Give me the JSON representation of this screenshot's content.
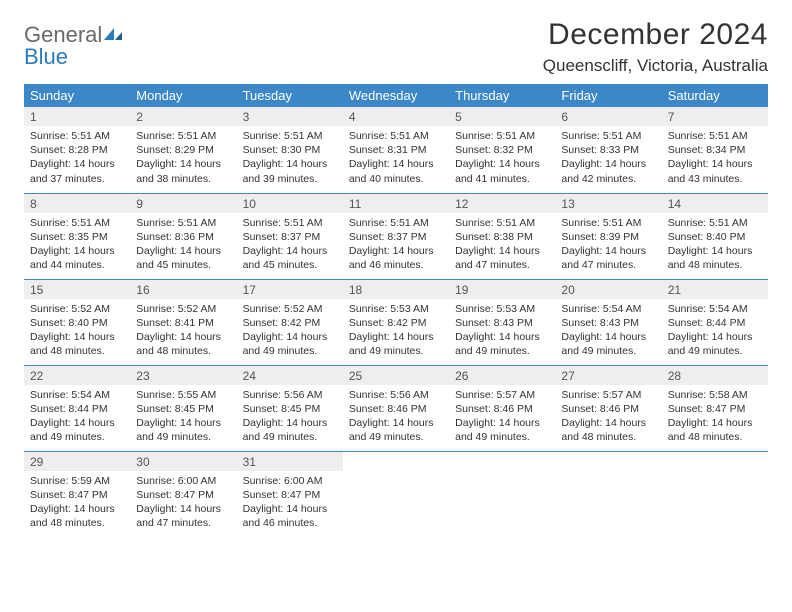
{
  "brand": {
    "word1": "General",
    "word2": "Blue"
  },
  "title": "December 2024",
  "location": "Queenscliff, Victoria, Australia",
  "colors": {
    "header_bg": "#3b87c8",
    "header_text": "#ffffff",
    "daynum_bg": "#eeeeee",
    "border": "#3b87c8",
    "logo_gray": "#6a6a6a",
    "logo_blue": "#2b7bbf"
  },
  "day_headers": [
    "Sunday",
    "Monday",
    "Tuesday",
    "Wednesday",
    "Thursday",
    "Friday",
    "Saturday"
  ],
  "weeks": [
    [
      {
        "n": "1",
        "sr": "Sunrise: 5:51 AM",
        "ss": "Sunset: 8:28 PM",
        "dl": "Daylight: 14 hours and 37 minutes."
      },
      {
        "n": "2",
        "sr": "Sunrise: 5:51 AM",
        "ss": "Sunset: 8:29 PM",
        "dl": "Daylight: 14 hours and 38 minutes."
      },
      {
        "n": "3",
        "sr": "Sunrise: 5:51 AM",
        "ss": "Sunset: 8:30 PM",
        "dl": "Daylight: 14 hours and 39 minutes."
      },
      {
        "n": "4",
        "sr": "Sunrise: 5:51 AM",
        "ss": "Sunset: 8:31 PM",
        "dl": "Daylight: 14 hours and 40 minutes."
      },
      {
        "n": "5",
        "sr": "Sunrise: 5:51 AM",
        "ss": "Sunset: 8:32 PM",
        "dl": "Daylight: 14 hours and 41 minutes."
      },
      {
        "n": "6",
        "sr": "Sunrise: 5:51 AM",
        "ss": "Sunset: 8:33 PM",
        "dl": "Daylight: 14 hours and 42 minutes."
      },
      {
        "n": "7",
        "sr": "Sunrise: 5:51 AM",
        "ss": "Sunset: 8:34 PM",
        "dl": "Daylight: 14 hours and 43 minutes."
      }
    ],
    [
      {
        "n": "8",
        "sr": "Sunrise: 5:51 AM",
        "ss": "Sunset: 8:35 PM",
        "dl": "Daylight: 14 hours and 44 minutes."
      },
      {
        "n": "9",
        "sr": "Sunrise: 5:51 AM",
        "ss": "Sunset: 8:36 PM",
        "dl": "Daylight: 14 hours and 45 minutes."
      },
      {
        "n": "10",
        "sr": "Sunrise: 5:51 AM",
        "ss": "Sunset: 8:37 PM",
        "dl": "Daylight: 14 hours and 45 minutes."
      },
      {
        "n": "11",
        "sr": "Sunrise: 5:51 AM",
        "ss": "Sunset: 8:37 PM",
        "dl": "Daylight: 14 hours and 46 minutes."
      },
      {
        "n": "12",
        "sr": "Sunrise: 5:51 AM",
        "ss": "Sunset: 8:38 PM",
        "dl": "Daylight: 14 hours and 47 minutes."
      },
      {
        "n": "13",
        "sr": "Sunrise: 5:51 AM",
        "ss": "Sunset: 8:39 PM",
        "dl": "Daylight: 14 hours and 47 minutes."
      },
      {
        "n": "14",
        "sr": "Sunrise: 5:51 AM",
        "ss": "Sunset: 8:40 PM",
        "dl": "Daylight: 14 hours and 48 minutes."
      }
    ],
    [
      {
        "n": "15",
        "sr": "Sunrise: 5:52 AM",
        "ss": "Sunset: 8:40 PM",
        "dl": "Daylight: 14 hours and 48 minutes."
      },
      {
        "n": "16",
        "sr": "Sunrise: 5:52 AM",
        "ss": "Sunset: 8:41 PM",
        "dl": "Daylight: 14 hours and 48 minutes."
      },
      {
        "n": "17",
        "sr": "Sunrise: 5:52 AM",
        "ss": "Sunset: 8:42 PM",
        "dl": "Daylight: 14 hours and 49 minutes."
      },
      {
        "n": "18",
        "sr": "Sunrise: 5:53 AM",
        "ss": "Sunset: 8:42 PM",
        "dl": "Daylight: 14 hours and 49 minutes."
      },
      {
        "n": "19",
        "sr": "Sunrise: 5:53 AM",
        "ss": "Sunset: 8:43 PM",
        "dl": "Daylight: 14 hours and 49 minutes."
      },
      {
        "n": "20",
        "sr": "Sunrise: 5:54 AM",
        "ss": "Sunset: 8:43 PM",
        "dl": "Daylight: 14 hours and 49 minutes."
      },
      {
        "n": "21",
        "sr": "Sunrise: 5:54 AM",
        "ss": "Sunset: 8:44 PM",
        "dl": "Daylight: 14 hours and 49 minutes."
      }
    ],
    [
      {
        "n": "22",
        "sr": "Sunrise: 5:54 AM",
        "ss": "Sunset: 8:44 PM",
        "dl": "Daylight: 14 hours and 49 minutes."
      },
      {
        "n": "23",
        "sr": "Sunrise: 5:55 AM",
        "ss": "Sunset: 8:45 PM",
        "dl": "Daylight: 14 hours and 49 minutes."
      },
      {
        "n": "24",
        "sr": "Sunrise: 5:56 AM",
        "ss": "Sunset: 8:45 PM",
        "dl": "Daylight: 14 hours and 49 minutes."
      },
      {
        "n": "25",
        "sr": "Sunrise: 5:56 AM",
        "ss": "Sunset: 8:46 PM",
        "dl": "Daylight: 14 hours and 49 minutes."
      },
      {
        "n": "26",
        "sr": "Sunrise: 5:57 AM",
        "ss": "Sunset: 8:46 PM",
        "dl": "Daylight: 14 hours and 49 minutes."
      },
      {
        "n": "27",
        "sr": "Sunrise: 5:57 AM",
        "ss": "Sunset: 8:46 PM",
        "dl": "Daylight: 14 hours and 48 minutes."
      },
      {
        "n": "28",
        "sr": "Sunrise: 5:58 AM",
        "ss": "Sunset: 8:47 PM",
        "dl": "Daylight: 14 hours and 48 minutes."
      }
    ],
    [
      {
        "n": "29",
        "sr": "Sunrise: 5:59 AM",
        "ss": "Sunset: 8:47 PM",
        "dl": "Daylight: 14 hours and 48 minutes."
      },
      {
        "n": "30",
        "sr": "Sunrise: 6:00 AM",
        "ss": "Sunset: 8:47 PM",
        "dl": "Daylight: 14 hours and 47 minutes."
      },
      {
        "n": "31",
        "sr": "Sunrise: 6:00 AM",
        "ss": "Sunset: 8:47 PM",
        "dl": "Daylight: 14 hours and 46 minutes."
      },
      null,
      null,
      null,
      null
    ]
  ]
}
